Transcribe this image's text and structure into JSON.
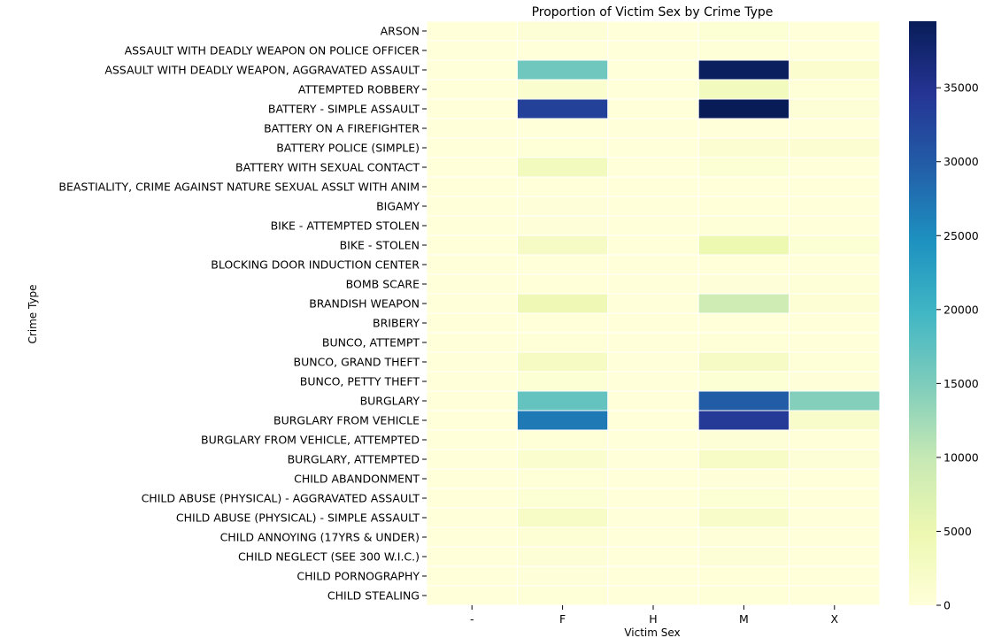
{
  "chart_data": {
    "type": "heatmap",
    "title": "Proportion of Victim Sex by Crime Type",
    "xlabel": "Victim Sex",
    "ylabel": "Crime Type",
    "x_categories": [
      "-",
      "F",
      "H",
      "M",
      "X"
    ],
    "y_categories": [
      "ARSON",
      "ASSAULT WITH DEADLY WEAPON ON POLICE OFFICER",
      "ASSAULT WITH DEADLY WEAPON, AGGRAVATED ASSAULT",
      "ATTEMPTED ROBBERY",
      "BATTERY - SIMPLE ASSAULT",
      "BATTERY ON A FIREFIGHTER",
      "BATTERY POLICE (SIMPLE)",
      "BATTERY WITH SEXUAL CONTACT",
      "BEASTIALITY, CRIME AGAINST NATURE SEXUAL ASSLT WITH ANIM",
      "BIGAMY",
      "BIKE - ATTEMPTED STOLEN",
      "BIKE - STOLEN",
      "BLOCKING DOOR INDUCTION CENTER",
      "BOMB SCARE",
      "BRANDISH WEAPON",
      "BRIBERY",
      "BUNCO, ATTEMPT",
      "BUNCO, GRAND THEFT",
      "BUNCO, PETTY THEFT",
      "BURGLARY",
      "BURGLARY FROM VEHICLE",
      "BURGLARY FROM VEHICLE, ATTEMPTED",
      "BURGLARY, ATTEMPTED",
      "CHILD ABANDONMENT",
      "CHILD ABUSE (PHYSICAL) - AGGRAVATED ASSAULT",
      "CHILD ABUSE (PHYSICAL) - SIMPLE ASSAULT",
      "CHILD ANNOYING (17YRS & UNDER)",
      "CHILD NEGLECT (SEE 300 W.I.C.)",
      "CHILD PORNOGRAPHY",
      "CHILD STEALING"
    ],
    "values": [
      [
        10,
        400,
        0,
        700,
        50
      ],
      [
        0,
        60,
        0,
        300,
        5
      ],
      [
        20,
        16000,
        0,
        39000,
        1200
      ],
      [
        0,
        1500,
        0,
        3500,
        300
      ],
      [
        30,
        33000,
        10,
        39500,
        400
      ],
      [
        0,
        20,
        0,
        60,
        0
      ],
      [
        0,
        300,
        0,
        900,
        900
      ],
      [
        0,
        3500,
        0,
        700,
        50
      ],
      [
        0,
        2,
        0,
        5,
        0
      ],
      [
        0,
        150,
        0,
        80,
        5
      ],
      [
        0,
        150,
        0,
        300,
        60
      ],
      [
        0,
        2500,
        0,
        5000,
        800
      ],
      [
        0,
        0,
        0,
        3,
        0
      ],
      [
        0,
        100,
        0,
        150,
        300
      ],
      [
        0,
        4500,
        0,
        9000,
        600
      ],
      [
        0,
        30,
        0,
        40,
        5
      ],
      [
        0,
        300,
        0,
        350,
        50
      ],
      [
        0,
        2800,
        0,
        2500,
        250
      ],
      [
        0,
        700,
        0,
        700,
        150
      ],
      [
        30,
        17000,
        10,
        30000,
        14500
      ],
      [
        20,
        27000,
        5,
        34000,
        1800
      ],
      [
        0,
        250,
        0,
        400,
        80
      ],
      [
        0,
        1500,
        0,
        2200,
        400
      ],
      [
        0,
        200,
        0,
        150,
        5
      ],
      [
        0,
        700,
        0,
        800,
        5
      ],
      [
        0,
        2200,
        0,
        2100,
        10
      ],
      [
        0,
        600,
        0,
        150,
        5
      ],
      [
        0,
        500,
        0,
        450,
        5
      ],
      [
        0,
        150,
        0,
        80,
        5
      ],
      [
        0,
        300,
        0,
        300,
        5
      ]
    ],
    "colorbar": {
      "colormap": "YlGnBu",
      "range": [
        0,
        39500
      ],
      "ticks": [
        0,
        5000,
        10000,
        15000,
        20000,
        25000,
        30000,
        35000
      ]
    },
    "grid": false,
    "legend": "colorbar on the right"
  }
}
